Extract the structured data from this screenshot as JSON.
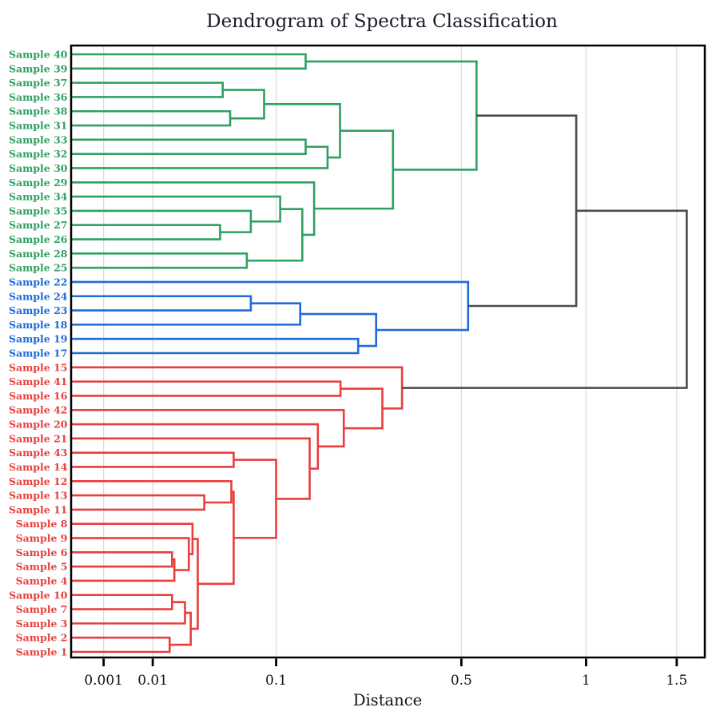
{
  "chart_data": {
    "type": "dendrogram",
    "title": "Dendrogram of Spectra Classification",
    "xlabel": "Distance",
    "orientation": "left",
    "axis": {
      "scale": "power",
      "exponent": 0.4,
      "min": 0,
      "max": 1.68,
      "grid": true,
      "ticks": [
        {
          "value": 0.001,
          "label": "0.001"
        },
        {
          "value": 0.01,
          "label": "0.01"
        },
        {
          "value": 0.1,
          "label": "0.1"
        },
        {
          "value": 0.5,
          "label": "0.5"
        },
        {
          "value": 1,
          "label": "1"
        },
        {
          "value": 1.5,
          "label": "1.5"
        }
      ]
    },
    "colors": {
      "green": "#2EA062",
      "blue": "#1E6BD6",
      "red": "#E93E3E",
      "gray": "#4C4C4C",
      "grid": "#DCDCDC",
      "frame": "#000000",
      "title": "#1B1B2B",
      "tick_text": "#111111"
    },
    "leaves": [
      {
        "name": "Sample 40",
        "cluster": "green"
      },
      {
        "name": "Sample 39",
        "cluster": "green"
      },
      {
        "name": "Sample 37",
        "cluster": "green"
      },
      {
        "name": "Sample 36",
        "cluster": "green"
      },
      {
        "name": "Sample 38",
        "cluster": "green"
      },
      {
        "name": "Sample 31",
        "cluster": "green"
      },
      {
        "name": "Sample 33",
        "cluster": "green"
      },
      {
        "name": "Sample 32",
        "cluster": "green"
      },
      {
        "name": "Sample 30",
        "cluster": "green"
      },
      {
        "name": "Sample 29",
        "cluster": "green"
      },
      {
        "name": "Sample 34",
        "cluster": "green"
      },
      {
        "name": "Sample 35",
        "cluster": "green"
      },
      {
        "name": "Sample 27",
        "cluster": "green"
      },
      {
        "name": "Sample 26",
        "cluster": "green"
      },
      {
        "name": "Sample 28",
        "cluster": "green"
      },
      {
        "name": "Sample 25",
        "cluster": "green"
      },
      {
        "name": "Sample 22",
        "cluster": "blue"
      },
      {
        "name": "Sample 24",
        "cluster": "blue"
      },
      {
        "name": "Sample 23",
        "cluster": "blue"
      },
      {
        "name": "Sample 18",
        "cluster": "blue"
      },
      {
        "name": "Sample 19",
        "cluster": "blue"
      },
      {
        "name": "Sample 17",
        "cluster": "blue"
      },
      {
        "name": "Sample 15",
        "cluster": "red"
      },
      {
        "name": "Sample 41",
        "cluster": "red"
      },
      {
        "name": "Sample 16",
        "cluster": "red"
      },
      {
        "name": "Sample 42",
        "cluster": "red"
      },
      {
        "name": "Sample 20",
        "cluster": "red"
      },
      {
        "name": "Sample 21",
        "cluster": "red"
      },
      {
        "name": "Sample 43",
        "cluster": "red"
      },
      {
        "name": "Sample 14",
        "cluster": "red"
      },
      {
        "name": "Sample 12",
        "cluster": "red"
      },
      {
        "name": "Sample 13",
        "cluster": "red"
      },
      {
        "name": "Sample 11",
        "cluster": "red"
      },
      {
        "name": "Sample 8",
        "cluster": "red"
      },
      {
        "name": "Sample 9",
        "cluster": "red"
      },
      {
        "name": "Sample 6",
        "cluster": "red"
      },
      {
        "name": "Sample 5",
        "cluster": "red"
      },
      {
        "name": "Sample 4",
        "cluster": "red"
      },
      {
        "name": "Sample 10",
        "cluster": "red"
      },
      {
        "name": "Sample 7",
        "cluster": "red"
      },
      {
        "name": "Sample 3",
        "cluster": "red"
      },
      {
        "name": "Sample 2",
        "cluster": "red"
      },
      {
        "name": "Sample 1",
        "cluster": "red"
      }
    ],
    "merges": [
      {
        "id": "g1",
        "children": [
          "Sample 40",
          "Sample 39"
        ],
        "d": 0.14,
        "cluster": "green"
      },
      {
        "id": "g2",
        "children": [
          "Sample 37",
          "Sample 36"
        ],
        "d": 0.047,
        "cluster": "green"
      },
      {
        "id": "g3",
        "children": [
          "Sample 38",
          "Sample 31"
        ],
        "d": 0.053,
        "cluster": "green"
      },
      {
        "id": "g4",
        "children": [
          "g2",
          "g3"
        ],
        "d": 0.086,
        "cluster": "green"
      },
      {
        "id": "g5",
        "children": [
          "Sample 33",
          "Sample 32"
        ],
        "d": 0.14,
        "cluster": "green"
      },
      {
        "id": "g6",
        "children": [
          "g5",
          "Sample 30"
        ],
        "d": 0.175,
        "cluster": "green"
      },
      {
        "id": "g7",
        "children": [
          "g4",
          "g6"
        ],
        "d": 0.197,
        "cluster": "green"
      },
      {
        "id": "g8",
        "children": [
          "Sample 27",
          "Sample 26"
        ],
        "d": 0.045,
        "cluster": "green"
      },
      {
        "id": "g9",
        "children": [
          "Sample 35",
          "g8"
        ],
        "d": 0.072,
        "cluster": "green"
      },
      {
        "id": "g10",
        "children": [
          "Sample 34",
          "g9"
        ],
        "d": 0.105,
        "cluster": "green"
      },
      {
        "id": "g11",
        "children": [
          "Sample 28",
          "Sample 25"
        ],
        "d": 0.068,
        "cluster": "green"
      },
      {
        "id": "g12",
        "children": [
          "g10",
          "g11"
        ],
        "d": 0.135,
        "cluster": "green"
      },
      {
        "id": "g13",
        "children": [
          "Sample 29",
          "g12"
        ],
        "d": 0.153,
        "cluster": "green"
      },
      {
        "id": "g14",
        "children": [
          "g7",
          "g13"
        ],
        "d": 0.309,
        "cluster": "green"
      },
      {
        "id": "g15",
        "children": [
          "g1",
          "g14"
        ],
        "d": 0.55,
        "cluster": "green"
      },
      {
        "id": "b1",
        "children": [
          "Sample 24",
          "Sample 23"
        ],
        "d": 0.072,
        "cluster": "blue"
      },
      {
        "id": "b2",
        "children": [
          "b1",
          "Sample 18"
        ],
        "d": 0.132,
        "cluster": "blue"
      },
      {
        "id": "b3",
        "children": [
          "Sample 19",
          "Sample 17"
        ],
        "d": 0.232,
        "cluster": "blue"
      },
      {
        "id": "b4",
        "children": [
          "b2",
          "b3"
        ],
        "d": 0.27,
        "cluster": "blue"
      },
      {
        "id": "b5",
        "children": [
          "Sample 22",
          "b4"
        ],
        "d": 0.522,
        "cluster": "blue"
      },
      {
        "id": "r1",
        "children": [
          "Sample 41",
          "Sample 16"
        ],
        "d": 0.198,
        "cluster": "red"
      },
      {
        "id": "r2",
        "children": [
          "Sample 43",
          "Sample 14"
        ],
        "d": 0.056,
        "cluster": "red"
      },
      {
        "id": "r3",
        "children": [
          "Sample 13",
          "Sample 11"
        ],
        "d": 0.034,
        "cluster": "red"
      },
      {
        "id": "r4",
        "children": [
          "Sample 12",
          "r3"
        ],
        "d": 0.054,
        "cluster": "red"
      },
      {
        "id": "r5",
        "children": [
          "Sample 6",
          "Sample 5"
        ],
        "d": 0.017,
        "cluster": "red"
      },
      {
        "id": "r6",
        "children": [
          "r5",
          "Sample 4"
        ],
        "d": 0.018,
        "cluster": "red"
      },
      {
        "id": "r7",
        "children": [
          "Sample 9",
          "r6"
        ],
        "d": 0.025,
        "cluster": "red"
      },
      {
        "id": "r8",
        "children": [
          "Sample 8",
          "r7"
        ],
        "d": 0.027,
        "cluster": "red"
      },
      {
        "id": "r9",
        "children": [
          "Sample 10",
          "Sample 7"
        ],
        "d": 0.017,
        "cluster": "red"
      },
      {
        "id": "r10",
        "children": [
          "r9",
          "Sample 3"
        ],
        "d": 0.023,
        "cluster": "red"
      },
      {
        "id": "r11",
        "children": [
          "Sample 2",
          "Sample 1"
        ],
        "d": 0.016,
        "cluster": "red"
      },
      {
        "id": "r12",
        "children": [
          "r10",
          "r11"
        ],
        "d": 0.026,
        "cluster": "red"
      },
      {
        "id": "r13",
        "children": [
          "r8",
          "r12"
        ],
        "d": 0.03,
        "cluster": "red"
      },
      {
        "id": "r14",
        "children": [
          "r4",
          "r13"
        ],
        "d": 0.056,
        "cluster": "red"
      },
      {
        "id": "r15",
        "children": [
          "r2",
          "r14"
        ],
        "d": 0.1,
        "cluster": "red"
      },
      {
        "id": "r16",
        "children": [
          "Sample 21",
          "r15"
        ],
        "d": 0.146,
        "cluster": "red"
      },
      {
        "id": "r17",
        "children": [
          "Sample 20",
          "r16"
        ],
        "d": 0.159,
        "cluster": "red"
      },
      {
        "id": "r18",
        "children": [
          "Sample 42",
          "r17"
        ],
        "d": 0.204,
        "cluster": "red"
      },
      {
        "id": "r19",
        "children": [
          "r1",
          "r18"
        ],
        "d": 0.284,
        "cluster": "red"
      },
      {
        "id": "r20",
        "children": [
          "Sample 15",
          "r19"
        ],
        "d": 0.331,
        "cluster": "red"
      },
      {
        "id": "x1",
        "children": [
          "g15",
          "b5"
        ],
        "d": 0.953,
        "cluster": "gray"
      },
      {
        "id": "x2",
        "children": [
          "x1",
          "r20"
        ],
        "d": 1.563,
        "cluster": "gray"
      }
    ]
  }
}
